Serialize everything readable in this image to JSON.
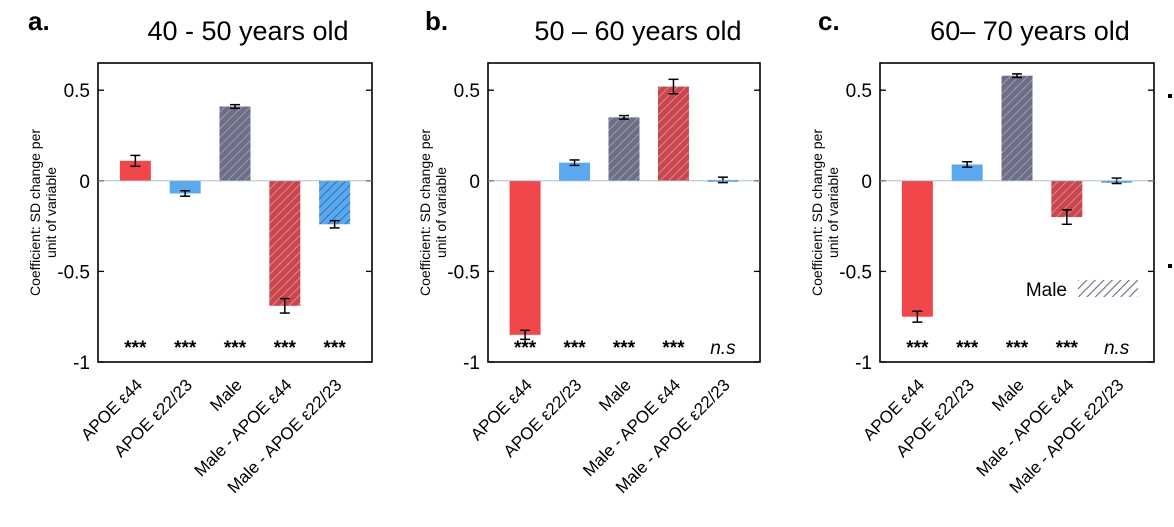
{
  "figure": {
    "ylabel_line1": "Coefficient: SD change per",
    "ylabel_line2": "unit of variable",
    "legend_label": "Male"
  },
  "colors": {
    "apoe44": "#f2474a",
    "apoe2223": "#5aa9ee",
    "male": "#6e6f86",
    "male_apoe44": "#c8474e",
    "male_apoe2223": "#5aa9ee"
  },
  "chart_data": [
    {
      "type": "bar",
      "panel_letter": "a.",
      "title": "40 - 50 years old",
      "categories": [
        "APOE ε44",
        "APOE ε22/23",
        "Male",
        "Male - APOE ε44",
        "Male - APOE ε22/23"
      ],
      "values": [
        0.11,
        -0.07,
        0.41,
        -0.69,
        -0.24
      ],
      "errors": [
        0.03,
        0.015,
        0.01,
        0.04,
        0.02
      ],
      "significance": [
        "***",
        "***",
        "***",
        "***",
        "***"
      ],
      "ylim": [
        -1,
        0.65
      ],
      "yticks": [
        0.5,
        0,
        -0.5,
        -1
      ],
      "ytick_labels": [
        "0.5",
        "0",
        "-0.5",
        "-1"
      ],
      "hatched": [
        false,
        false,
        true,
        true,
        true
      ]
    },
    {
      "type": "bar",
      "panel_letter": "b.",
      "title": "50 – 60 years old",
      "categories": [
        "APOE ε44",
        "APOE ε22/23",
        "Male",
        "Male - APOE ε44",
        "Male - APOE ε22/23"
      ],
      "values": [
        -0.85,
        0.1,
        0.35,
        0.52,
        0.005
      ],
      "errors": [
        0.025,
        0.015,
        0.01,
        0.04,
        0.015
      ],
      "significance": [
        "***",
        "***",
        "***",
        "***",
        "n.s"
      ],
      "ylim": [
        -1,
        0.65
      ],
      "yticks": [
        0.5,
        0,
        -0.5,
        -1
      ],
      "ytick_labels": [
        "0.5",
        "0",
        "-0.5",
        "-1"
      ],
      "hatched": [
        false,
        false,
        true,
        true,
        true
      ]
    },
    {
      "type": "bar",
      "panel_letter": "c.",
      "title": "60– 70 years old",
      "categories": [
        "APOE ε44",
        "APOE ε22/23",
        "Male",
        "Male - APOE ε44",
        "Male - APOE ε22/23"
      ],
      "values": [
        -0.75,
        0.09,
        0.58,
        -0.2,
        0.0
      ],
      "errors": [
        0.03,
        0.015,
        0.01,
        0.04,
        0.015
      ],
      "significance": [
        "***",
        "***",
        "***",
        "***",
        "n.s"
      ],
      "ylim": [
        -1,
        0.65
      ],
      "yticks": [
        0.5,
        0,
        -0.5,
        -1
      ],
      "ytick_labels": [
        "0.5",
        "0",
        "-0.5",
        "-1"
      ],
      "hatched": [
        false,
        false,
        true,
        true,
        true
      ]
    }
  ]
}
